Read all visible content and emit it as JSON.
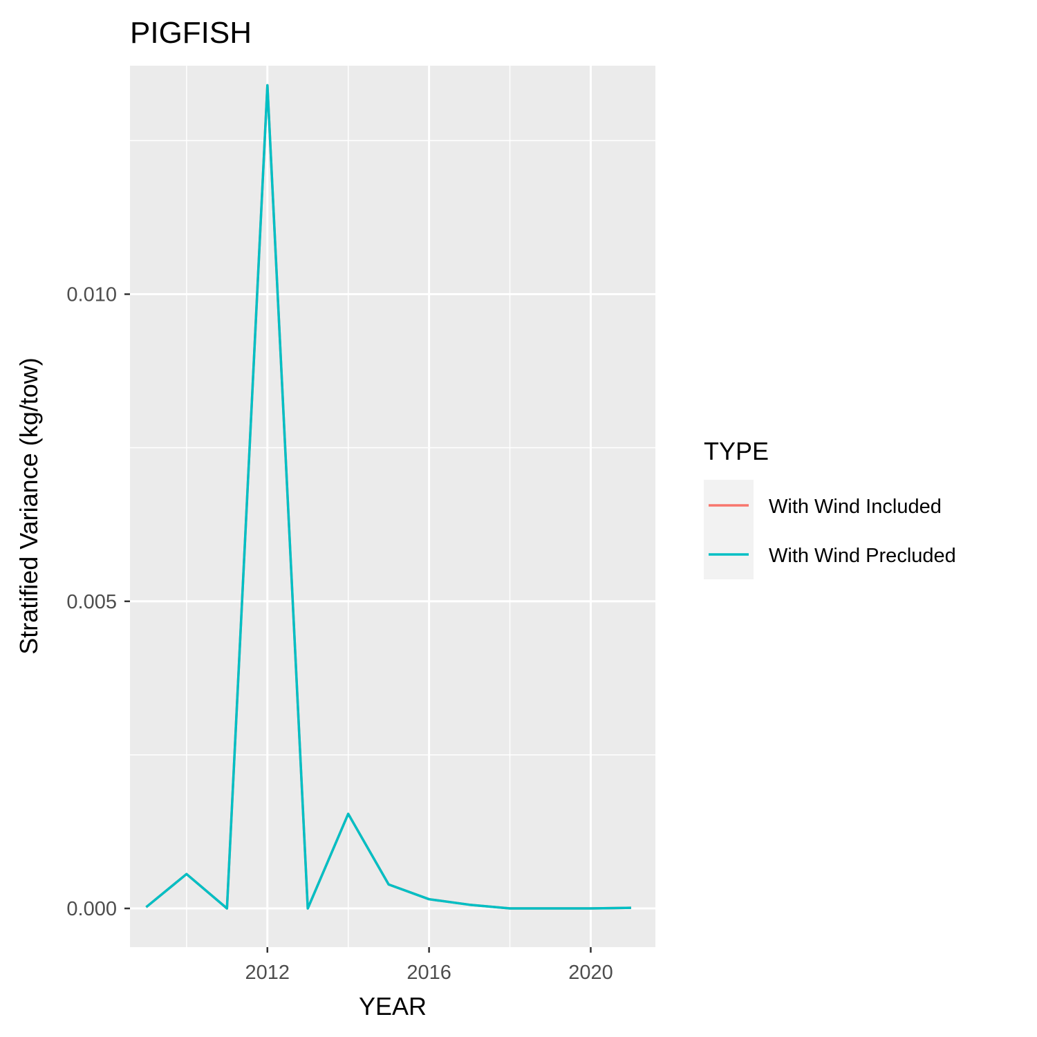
{
  "chart_data": {
    "type": "line",
    "title": "PIGFISH",
    "xlabel": "YEAR",
    "ylabel": "Stratified Variance (kg/tow)",
    "xlim": [
      2008.6,
      2021.6
    ],
    "ylim": [
      -0.00063,
      0.01372
    ],
    "x_ticks": [
      2012,
      2016,
      2020
    ],
    "x_tick_labels": [
      "2012",
      "2016",
      "2020"
    ],
    "x_minor": [
      2010,
      2014,
      2018
    ],
    "y_ticks": [
      0.0,
      0.005,
      0.01
    ],
    "y_tick_labels": [
      "0.000",
      "0.005",
      "0.010"
    ],
    "y_minor": [
      0.0025,
      0.0075,
      0.0125
    ],
    "grid": true,
    "legend": {
      "title": "TYPE",
      "placement": "right",
      "entries": [
        {
          "label": "With Wind Included",
          "color": "#F8766D"
        },
        {
          "label": "With Wind Precluded",
          "color": "#00BFC4"
        }
      ]
    },
    "series": [
      {
        "name": "With Wind Included",
        "color": "#F8766D",
        "x": [
          2009,
          2010,
          2011,
          2012,
          2013,
          2014,
          2015,
          2016,
          2017,
          2018,
          2019,
          2020,
          2021
        ],
        "y": [
          2e-05,
          0.00056,
          0.0,
          0.0134,
          0.0,
          0.00154,
          0.00039,
          0.00015,
          6e-05,
          0.0,
          0.0,
          0.0,
          1e-05
        ]
      },
      {
        "name": "With Wind Precluded",
        "color": "#00BFC4",
        "x": [
          2009,
          2010,
          2011,
          2012,
          2013,
          2014,
          2015,
          2016,
          2017,
          2018,
          2019,
          2020,
          2021
        ],
        "y": [
          2e-05,
          0.00056,
          0.0,
          0.0134,
          0.0,
          0.00154,
          0.00039,
          0.00015,
          6e-05,
          0.0,
          0.0,
          0.0,
          1e-05
        ]
      }
    ]
  },
  "colors": {
    "panel_background": "#EBEBEB",
    "gridline": "#FFFFFF",
    "legend_key_background": "#F2F2F2",
    "tick_label": "#4D4D4D"
  }
}
